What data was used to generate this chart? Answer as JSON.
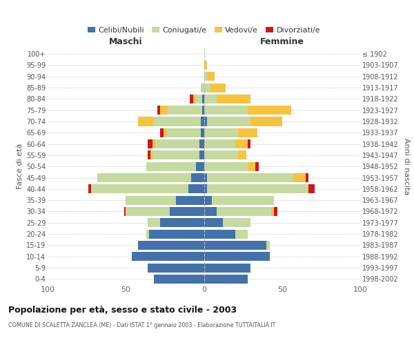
{
  "age_groups": [
    "100+",
    "95-99",
    "90-94",
    "85-89",
    "80-84",
    "75-79",
    "70-74",
    "65-69",
    "60-64",
    "55-59",
    "50-54",
    "45-49",
    "40-44",
    "35-39",
    "30-34",
    "25-29",
    "20-24",
    "15-19",
    "10-14",
    "5-9",
    "0-4"
  ],
  "birth_years": [
    "≤ 1902",
    "1903-1907",
    "1908-1912",
    "1913-1917",
    "1918-1922",
    "1923-1927",
    "1928-1932",
    "1933-1937",
    "1938-1942",
    "1943-1947",
    "1948-1952",
    "1953-1957",
    "1958-1962",
    "1963-1967",
    "1968-1972",
    "1973-1977",
    "1978-1982",
    "1983-1987",
    "1988-1992",
    "1993-1997",
    "1998-2002"
  ],
  "colors": {
    "celibi": "#4472a8",
    "coniugati": "#c5d9a0",
    "vedovi": "#f5c242",
    "divorziati": "#cc1818"
  },
  "maschi": {
    "celibi": [
      0,
      0,
      0,
      0,
      1,
      1,
      2,
      2,
      3,
      3,
      5,
      8,
      10,
      18,
      22,
      28,
      35,
      42,
      46,
      36,
      32
    ],
    "coniugati": [
      0,
      0,
      0,
      2,
      4,
      22,
      30,
      22,
      28,
      30,
      32,
      60,
      62,
      32,
      28,
      8,
      2,
      0,
      0,
      0,
      0
    ],
    "vedovi": [
      0,
      0,
      0,
      0,
      2,
      5,
      10,
      2,
      2,
      1,
      0,
      0,
      0,
      0,
      0,
      0,
      0,
      0,
      0,
      0,
      0
    ],
    "divorziati": [
      0,
      0,
      0,
      0,
      2,
      2,
      0,
      2,
      3,
      2,
      0,
      0,
      2,
      0,
      1,
      0,
      0,
      0,
      0,
      0,
      0
    ]
  },
  "femmine": {
    "celibi": [
      0,
      0,
      0,
      0,
      0,
      0,
      2,
      0,
      0,
      0,
      0,
      2,
      2,
      5,
      8,
      12,
      20,
      40,
      42,
      30,
      28
    ],
    "coniugati": [
      0,
      0,
      2,
      4,
      8,
      28,
      28,
      22,
      20,
      22,
      28,
      55,
      65,
      40,
      35,
      18,
      8,
      2,
      0,
      0,
      0
    ],
    "vedovi": [
      0,
      2,
      5,
      10,
      22,
      28,
      20,
      12,
      8,
      5,
      5,
      8,
      0,
      0,
      2,
      0,
      0,
      0,
      0,
      0,
      0
    ],
    "divorziati": [
      0,
      0,
      0,
      0,
      0,
      0,
      0,
      0,
      2,
      0,
      2,
      2,
      4,
      0,
      2,
      0,
      0,
      0,
      0,
      0,
      0
    ]
  },
  "title": "Popolazione per età, sesso e stato civile - 2003",
  "subtitle": "COMUNE DI SCALETTA ZANCLEA (ME) - Dati ISTAT 1° gennaio 2003 - Elaborazione TUTTAITALIA.IT",
  "xlabel_left": "Maschi",
  "xlabel_right": "Femmine",
  "ylabel_left": "Fasce di età",
  "ylabel_right": "Anni di nascita",
  "xlim": 100,
  "legend_labels": [
    "Celibi/Nubili",
    "Coniugati/e",
    "Vedovi/e",
    "Divorziati/e"
  ]
}
